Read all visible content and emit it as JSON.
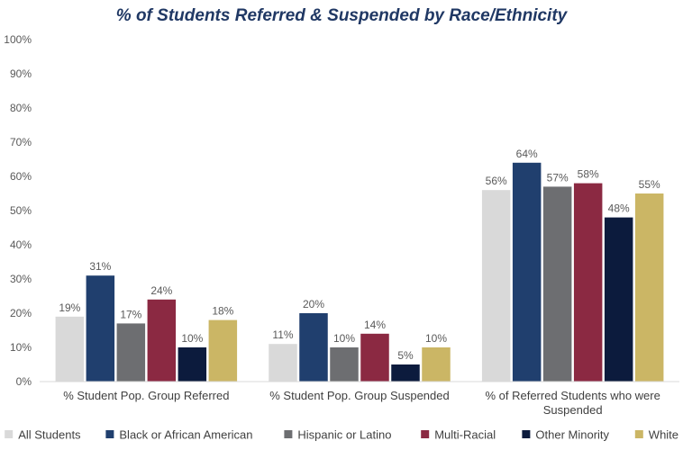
{
  "chart_data": {
    "type": "bar",
    "title": "% of Students Referred & Suspended by Race/Ethnicity",
    "xlabel": "",
    "ylabel": "",
    "ylim": [
      0,
      100
    ],
    "yticks": [
      "0%",
      "10%",
      "20%",
      "30%",
      "40%",
      "50%",
      "60%",
      "70%",
      "80%",
      "90%",
      "100%"
    ],
    "categories": [
      [
        "% Student Pop. Group Referred"
      ],
      [
        "% Student Pop. Group Suspended"
      ],
      [
        "% of Referred Students who were",
        "Suspended"
      ]
    ],
    "series": [
      {
        "name": "All Students",
        "color": "#d9d9d9",
        "values": [
          19,
          11,
          56
        ],
        "labels": [
          "19%",
          "11%",
          "56%"
        ]
      },
      {
        "name": "Black or African American",
        "color": "#203f6e",
        "values": [
          31,
          20,
          64
        ],
        "labels": [
          "31%",
          "20%",
          "64%"
        ]
      },
      {
        "name": "Hispanic or Latino",
        "color": "#6d6e71",
        "values": [
          17,
          10,
          57
        ],
        "labels": [
          "17%",
          "10%",
          "57%"
        ]
      },
      {
        "name": "Multi-Racial",
        "color": "#8b2942",
        "values": [
          24,
          14,
          58
        ],
        "labels": [
          "24%",
          "14%",
          "58%"
        ]
      },
      {
        "name": "Other Minority",
        "color": "#0c1b3d",
        "values": [
          10,
          5,
          48
        ],
        "labels": [
          "10%",
          "5%",
          "48%"
        ]
      },
      {
        "name": "White",
        "color": "#cbb665",
        "values": [
          18,
          10,
          55
        ],
        "labels": [
          "18%",
          "10%",
          "55%"
        ]
      }
    ],
    "grid": false,
    "legend": "bottom"
  }
}
